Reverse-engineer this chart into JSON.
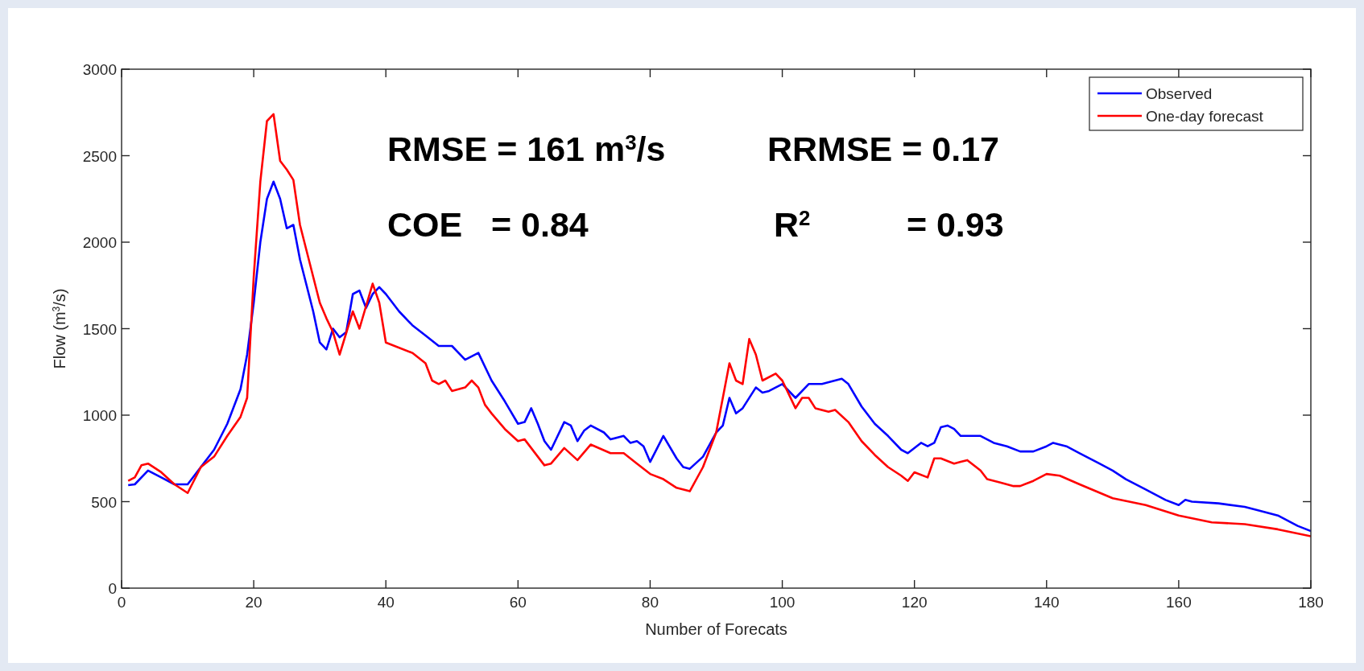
{
  "chart_data": {
    "type": "line",
    "xlabel": "Number of Forecats",
    "ylabel": "Flow (m$^{3}$/s)",
    "xlim": [
      0,
      180
    ],
    "xticks": [
      0,
      20,
      40,
      60,
      80,
      100,
      120,
      140,
      160,
      180
    ],
    "ylim": [
      0,
      3000
    ],
    "yticks": [
      0,
      500,
      1000,
      1500,
      2000,
      2500,
      3000
    ],
    "grid": false,
    "legend": "top right",
    "marker": "none",
    "line_style": "solid",
    "annotations": [
      "RMSE = 161 m$^{3}$/s",
      "RRMSE = 0.17",
      "COE   = 0.84",
      "R$^{2}$          = 0.93"
    ],
    "series": [
      {
        "name": "Observed",
        "color": "#0000ff",
        "x": [
          1,
          2,
          4,
          6,
          8,
          10,
          12,
          14,
          16,
          18,
          19,
          20,
          21,
          22,
          23,
          24,
          25,
          26,
          27,
          28,
          29,
          30,
          31,
          32,
          33,
          34,
          35,
          36,
          37,
          38,
          39,
          40,
          42,
          44,
          46,
          48,
          50,
          52,
          54,
          56,
          58,
          60,
          61,
          62,
          63,
          64,
          65,
          67,
          68,
          69,
          70,
          71,
          73,
          74,
          76,
          77,
          78,
          79,
          80,
          82,
          84,
          85,
          86,
          88,
          90,
          91,
          92,
          93,
          94,
          96,
          97,
          98,
          100,
          102,
          104,
          106,
          109,
          110,
          112,
          114,
          116,
          118,
          119,
          121,
          122,
          123,
          124,
          125,
          126,
          127,
          130,
          132,
          134,
          136,
          138,
          140,
          141,
          143,
          145,
          148,
          150,
          152,
          155,
          158,
          160,
          161,
          162,
          166,
          170,
          172,
          175,
          178,
          180
        ],
        "values": [
          595,
          600,
          680,
          640,
          600,
          600,
          700,
          800,
          950,
          1150,
          1350,
          1650,
          2000,
          2250,
          2350,
          2250,
          2080,
          2100,
          1900,
          1750,
          1600,
          1420,
          1380,
          1500,
          1450,
          1480,
          1700,
          1720,
          1620,
          1700,
          1740,
          1700,
          1600,
          1520,
          1460,
          1400,
          1400,
          1320,
          1360,
          1200,
          1080,
          950,
          960,
          1040,
          950,
          850,
          800,
          960,
          940,
          850,
          910,
          940,
          900,
          860,
          880,
          840,
          850,
          820,
          730,
          880,
          750,
          700,
          690,
          760,
          900,
          940,
          1100,
          1010,
          1040,
          1160,
          1130,
          1140,
          1180,
          1100,
          1180,
          1180,
          1210,
          1180,
          1050,
          950,
          880,
          800,
          780,
          840,
          820,
          840,
          930,
          940,
          920,
          880,
          880,
          840,
          820,
          790,
          790,
          820,
          840,
          820,
          780,
          720,
          680,
          630,
          570,
          510,
          480,
          510,
          500,
          490,
          470,
          450,
          420,
          360,
          330
        ]
      },
      {
        "name": "One-day forecast",
        "color": "#ff0000",
        "x": [
          1,
          2,
          3,
          4,
          6,
          8,
          10,
          12,
          14,
          16,
          18,
          19,
          20,
          21,
          22,
          23,
          24,
          25,
          26,
          27,
          28,
          29,
          30,
          31,
          32,
          33,
          35,
          36,
          38,
          39,
          40,
          44,
          46,
          47,
          48,
          49,
          50,
          52,
          53,
          54,
          55,
          56,
          58,
          60,
          61,
          63,
          64,
          65,
          67,
          69,
          71,
          74,
          76,
          78,
          80,
          82,
          84,
          86,
          88,
          90,
          92,
          93,
          94,
          95,
          96,
          97,
          99,
          100,
          102,
          103,
          104,
          105,
          107,
          108,
          110,
          112,
          114,
          116,
          118,
          119,
          120,
          122,
          123,
          124,
          126,
          127,
          128,
          130,
          131,
          133,
          135,
          136,
          138,
          140,
          142,
          145,
          150,
          155,
          160,
          165,
          170,
          175,
          180
        ],
        "values": [
          620,
          640,
          710,
          720,
          670,
          600,
          550,
          700,
          760,
          880,
          990,
          1100,
          1800,
          2350,
          2700,
          2740,
          2470,
          2420,
          2360,
          2100,
          1950,
          1800,
          1650,
          1560,
          1480,
          1350,
          1600,
          1500,
          1760,
          1650,
          1420,
          1360,
          1300,
          1200,
          1180,
          1200,
          1140,
          1160,
          1200,
          1160,
          1060,
          1010,
          920,
          850,
          860,
          760,
          710,
          720,
          810,
          740,
          830,
          780,
          780,
          720,
          660,
          630,
          580,
          560,
          700,
          900,
          1300,
          1200,
          1180,
          1440,
          1350,
          1200,
          1240,
          1200,
          1040,
          1100,
          1100,
          1040,
          1020,
          1030,
          960,
          850,
          770,
          700,
          650,
          620,
          670,
          640,
          750,
          750,
          720,
          730,
          740,
          680,
          630,
          610,
          590,
          590,
          620,
          660,
          650,
          600,
          520,
          480,
          420,
          380,
          370,
          340,
          300
        ]
      }
    ]
  }
}
